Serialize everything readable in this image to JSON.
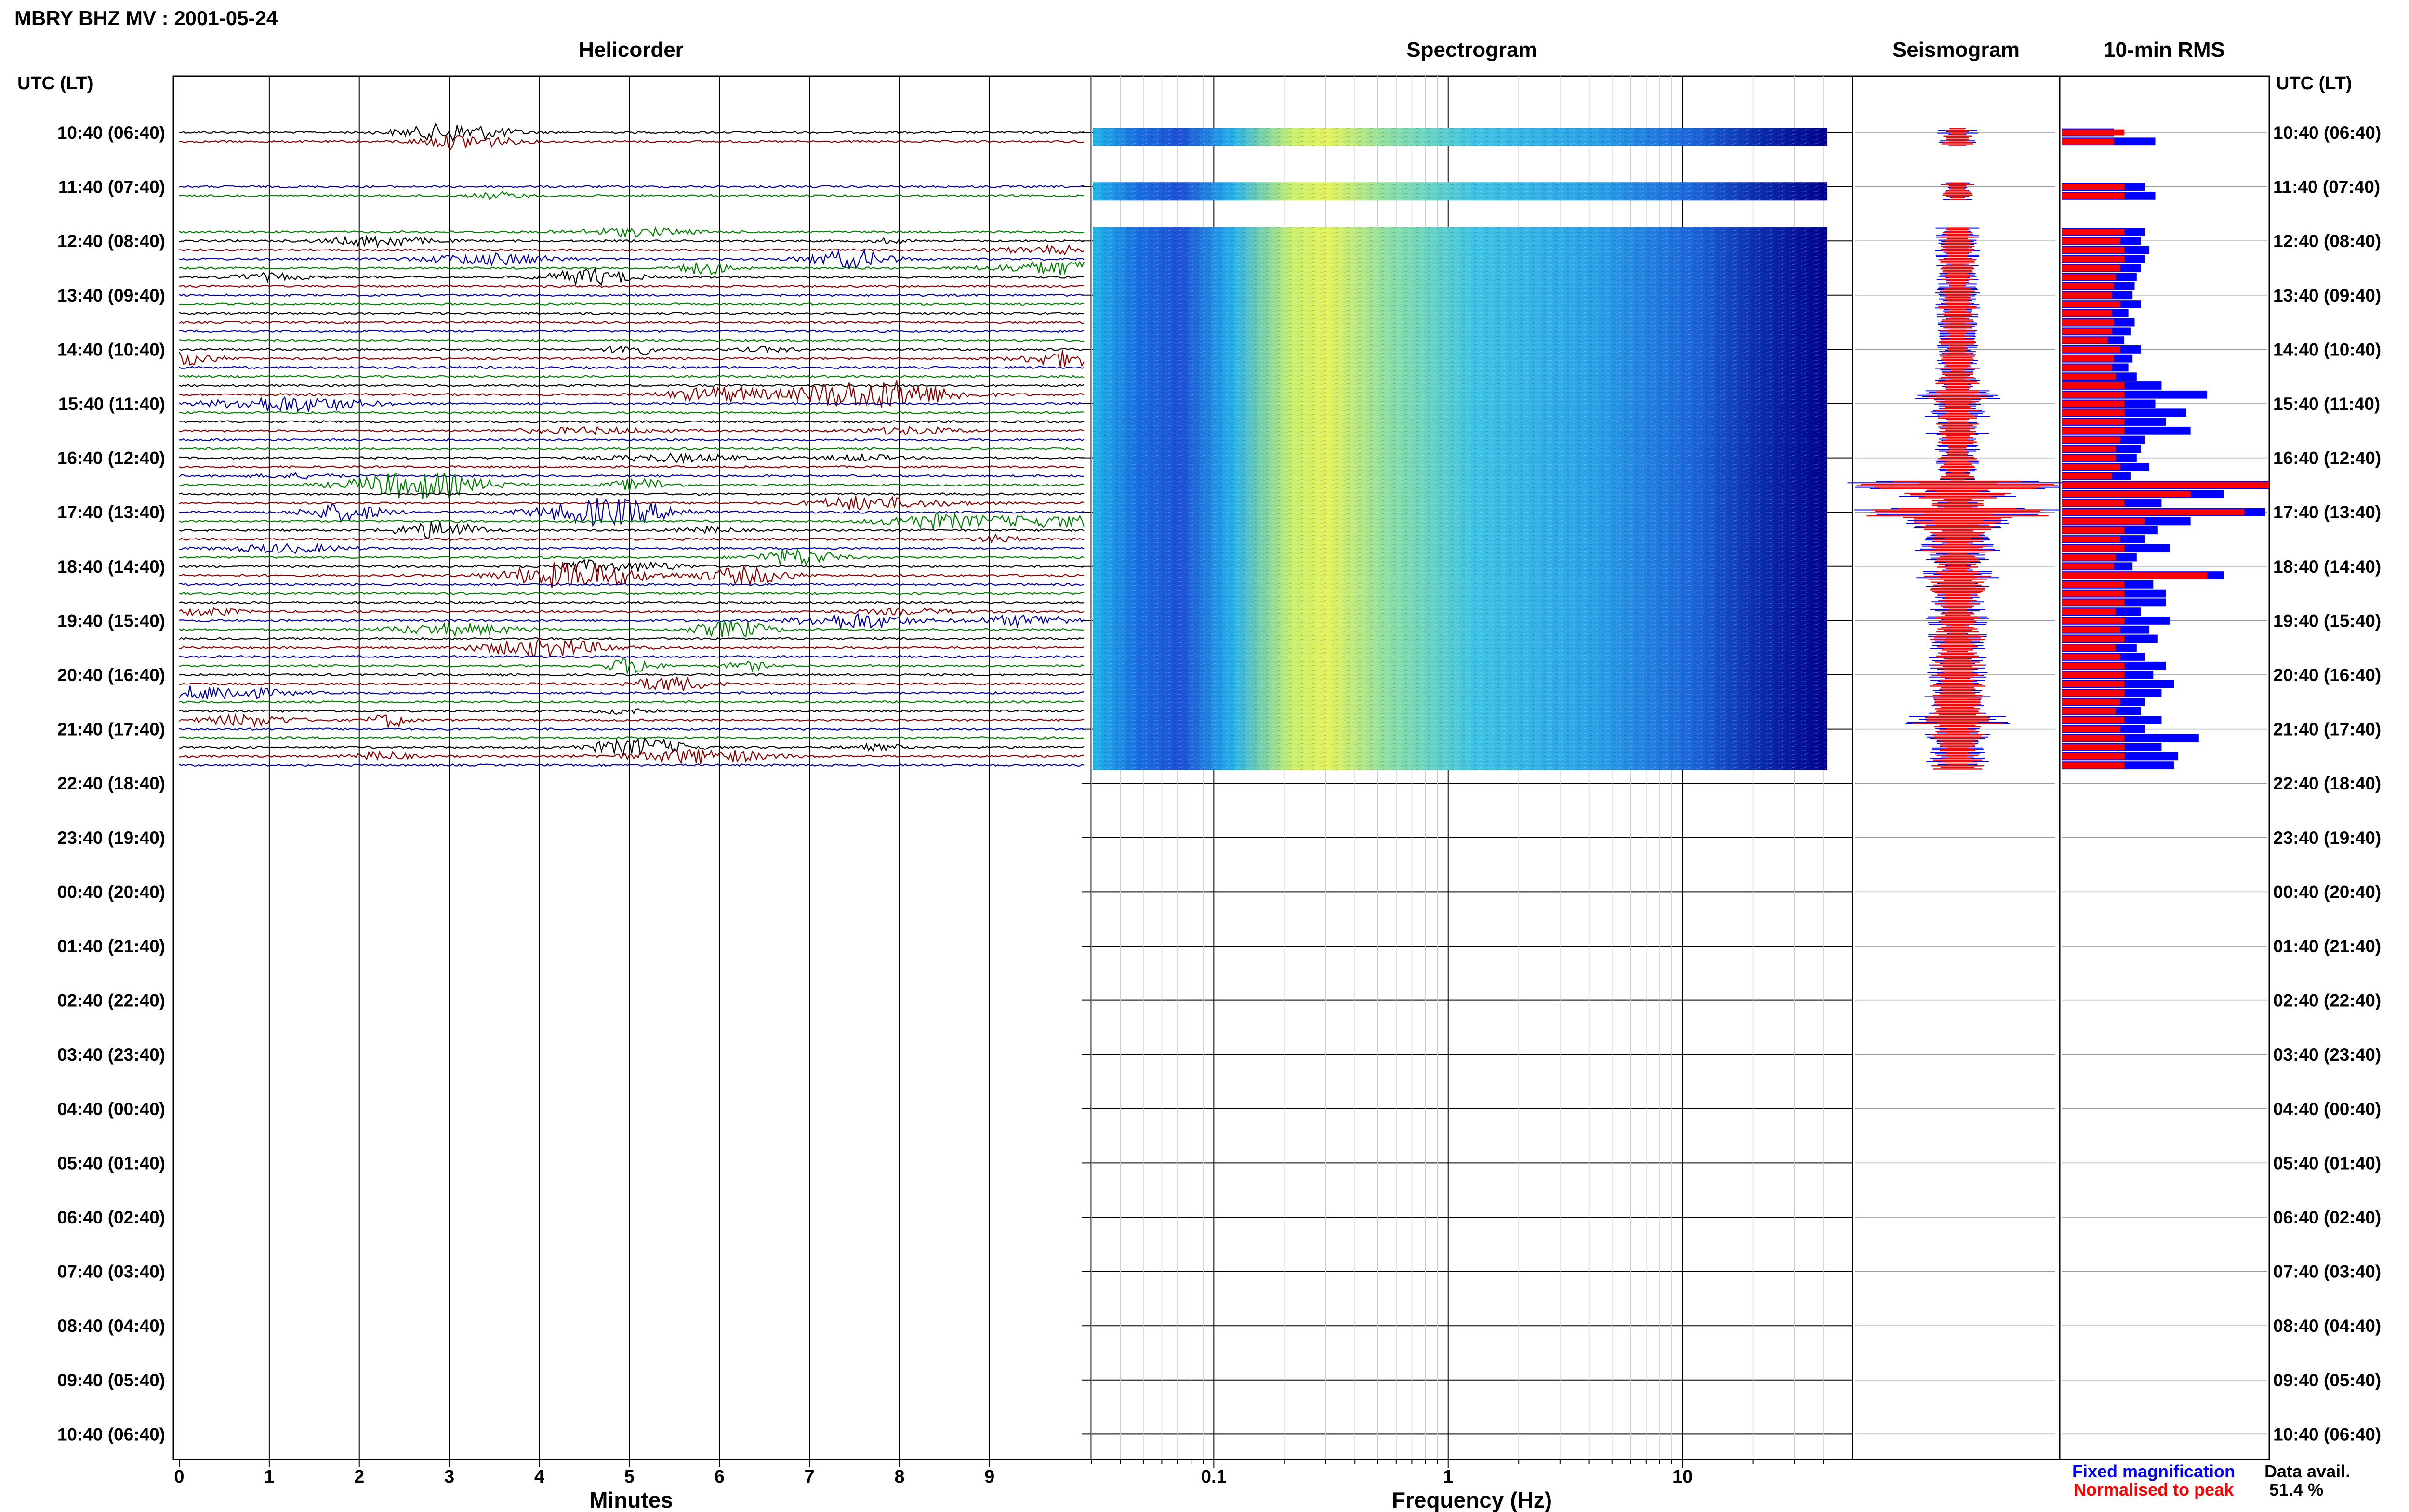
{
  "header": {
    "title": "MBRY BHZ MV : 2001-05-24",
    "utc_label_left": "UTC (LT)",
    "utc_label_right": "UTC (LT)"
  },
  "panels": {
    "helicorder": "Helicorder",
    "spectrogram": "Spectrogram",
    "seismogram": "Seismogram",
    "rms": "10-min RMS"
  },
  "axes": {
    "minutes_label": "Minutes",
    "frequency_label": "Frequency (Hz)",
    "minute_ticks": [
      "0",
      "1",
      "2",
      "3",
      "4",
      "5",
      "6",
      "7",
      "8",
      "9"
    ],
    "frequency_ticks": [
      "0.1",
      "1",
      "10"
    ]
  },
  "legend": {
    "fixed": "Fixed magnification",
    "normalised": "Normalised to peak",
    "fixed_color": "#0000ff",
    "normalised_color": "#ff0000"
  },
  "availability": {
    "label": "Data avail.",
    "value": "51.4 %"
  },
  "colors": {
    "trace_cycle": [
      "#000000",
      "#8b0000",
      "#0000aa",
      "#008000"
    ],
    "spectrogram_low": "#00008b",
    "spectrogram_high": "#ffff00"
  },
  "chart_data": {
    "type": "heatmap",
    "row_hour_labels": [
      "10:40 (06:40)",
      "11:40 (07:40)",
      "12:40 (08:40)",
      "13:40 (09:40)",
      "14:40 (10:40)",
      "15:40 (11:40)",
      "16:40 (12:40)",
      "17:40 (13:40)",
      "18:40 (14:40)",
      "19:40 (15:40)",
      "20:40 (16:40)",
      "21:40 (17:40)",
      "22:40 (18:40)",
      "23:40 (19:40)",
      "00:40 (20:40)",
      "01:40 (21:40)",
      "02:40 (22:40)",
      "03:40 (23:40)",
      "04:40 (00:40)",
      "05:40 (01:40)",
      "06:40 (02:40)",
      "07:40 (03:40)",
      "08:40 (04:40)",
      "09:40 (05:40)",
      "10:40 (06:40)"
    ],
    "x_minutes_range": [
      0,
      10
    ],
    "frequency_range_hz": [
      0.03,
      40
    ],
    "frequency_scale": "log",
    "data_rows_10min": 71,
    "rms_fixed": [
      0.25,
      0.45,
      0.0,
      0.0,
      0.0,
      0.0,
      0.4,
      0.45,
      0.0,
      0.0,
      0.0,
      0.4,
      0.38,
      0.42,
      0.4,
      0.38,
      0.36,
      0.35,
      0.34,
      0.38,
      0.32,
      0.35,
      0.33,
      0.3,
      0.38,
      0.34,
      0.32,
      0.36,
      0.48,
      0.7,
      0.45,
      0.6,
      0.5,
      0.62,
      0.4,
      0.38,
      0.36,
      0.42,
      0.33,
      1.0,
      0.78,
      0.48,
      0.98,
      0.62,
      0.46,
      0.4,
      0.52,
      0.36,
      0.34,
      0.78,
      0.44,
      0.5,
      0.5,
      0.38,
      0.52,
      0.42,
      0.46,
      0.36,
      0.4,
      0.5,
      0.44,
      0.54,
      0.48,
      0.4,
      0.38,
      0.48,
      0.4,
      0.66,
      0.48,
      0.56,
      0.54
    ],
    "rms_normalised": [
      0.3,
      0.25,
      0.0,
      0.0,
      0.0,
      0.0,
      0.3,
      0.3,
      0.0,
      0.0,
      0.0,
      0.3,
      0.28,
      0.3,
      0.3,
      0.28,
      0.26,
      0.25,
      0.24,
      0.28,
      0.24,
      0.25,
      0.24,
      0.22,
      0.28,
      0.25,
      0.24,
      0.26,
      0.3,
      0.3,
      0.3,
      0.3,
      0.3,
      0.3,
      0.28,
      0.26,
      0.26,
      0.28,
      0.24,
      1.0,
      0.62,
      0.3,
      0.88,
      0.4,
      0.3,
      0.28,
      0.3,
      0.26,
      0.25,
      0.7,
      0.3,
      0.3,
      0.3,
      0.26,
      0.3,
      0.28,
      0.3,
      0.26,
      0.28,
      0.3,
      0.3,
      0.3,
      0.3,
      0.28,
      0.26,
      0.3,
      0.28,
      0.3,
      0.3,
      0.3,
      0.3
    ],
    "seismogram_amplitude": [
      0.08,
      0.08,
      0.0,
      0.0,
      0.0,
      0.0,
      0.08,
      0.08,
      0.0,
      0.0,
      0.0,
      0.1,
      0.12,
      0.1,
      0.1,
      0.1,
      0.09,
      0.09,
      0.1,
      0.12,
      0.1,
      0.1,
      0.09,
      0.1,
      0.12,
      0.1,
      0.1,
      0.1,
      0.15,
      0.3,
      0.15,
      0.2,
      0.18,
      0.2,
      0.12,
      0.1,
      0.12,
      0.14,
      0.1,
      1.0,
      0.5,
      0.2,
      0.9,
      0.5,
      0.3,
      0.2,
      0.3,
      0.18,
      0.15,
      0.35,
      0.2,
      0.2,
      0.2,
      0.15,
      0.2,
      0.15,
      0.2,
      0.15,
      0.18,
      0.2,
      0.2,
      0.22,
      0.2,
      0.18,
      0.16,
      0.4,
      0.16,
      0.2,
      0.2,
      0.18,
      0.18
    ]
  }
}
